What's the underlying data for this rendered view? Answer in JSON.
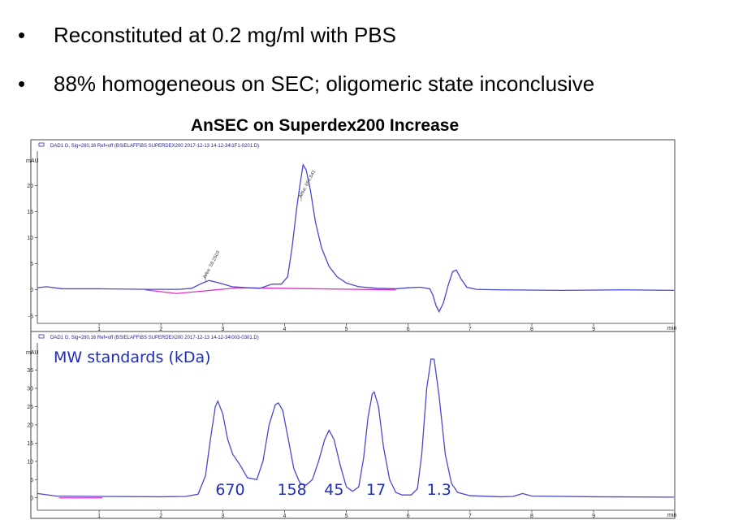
{
  "slide": {
    "bullets": [
      {
        "marker": "•",
        "text": "Reconstituted at 0.2 mg/ml with PBS"
      },
      {
        "marker": "•",
        "text": "88% homogeneous  on SEC; oligomeric state inconclusive"
      }
    ],
    "chart_title": "AnSEC on Superdex200 Increase"
  },
  "chart_data": [
    {
      "type": "line",
      "header": "DAD1 G, Sig=280,16 Ref=off (BSIELAFF\\BS SUPERDEX200 2017-12-13 14-12-34\\1F1-0201.D)",
      "ylabel": "mAU",
      "xunit": "min",
      "xlim": [
        0,
        10.3
      ],
      "ylim": [
        -5.5,
        26
      ],
      "xticks": [
        1,
        2,
        3,
        4,
        5,
        6,
        7,
        8,
        9
      ],
      "yticks": [
        -5,
        0,
        5,
        10,
        15,
        20
      ],
      "color": "#4848d0",
      "baseline_color": "#e030c0",
      "series": [
        {
          "values": [
            [
              0,
              0.4
            ],
            [
              0.15,
              0.6
            ],
            [
              0.4,
              0.2
            ],
            [
              1.0,
              0.2
            ],
            [
              1.8,
              0.1
            ],
            [
              2.3,
              0.1
            ],
            [
              2.5,
              0.3
            ],
            [
              2.65,
              1.2
            ],
            [
              2.78,
              1.8
            ],
            [
              2.95,
              1.3
            ],
            [
              3.15,
              0.6
            ],
            [
              3.4,
              0.4
            ],
            [
              3.6,
              0.3
            ],
            [
              3.8,
              1.1
            ],
            [
              3.95,
              1.1
            ],
            [
              4.05,
              2.5
            ],
            [
              4.12,
              8
            ],
            [
              4.2,
              16
            ],
            [
              4.26,
              21
            ],
            [
              4.3,
              24
            ],
            [
              4.35,
              23
            ],
            [
              4.42,
              19
            ],
            [
              4.5,
              13
            ],
            [
              4.6,
              8
            ],
            [
              4.72,
              4.5
            ],
            [
              4.85,
              2.5
            ],
            [
              5.0,
              1.3
            ],
            [
              5.2,
              0.6
            ],
            [
              5.5,
              0.3
            ],
            [
              5.8,
              0.2
            ],
            [
              6.0,
              0.4
            ],
            [
              6.2,
              0.5
            ],
            [
              6.35,
              0.2
            ],
            [
              6.4,
              -1
            ],
            [
              6.45,
              -3
            ],
            [
              6.5,
              -4.2
            ],
            [
              6.57,
              -2.5
            ],
            [
              6.65,
              1
            ],
            [
              6.72,
              3.5
            ],
            [
              6.78,
              3.8
            ],
            [
              6.86,
              2
            ],
            [
              6.95,
              0.5
            ],
            [
              7.1,
              0.1
            ],
            [
              7.5,
              0
            ],
            [
              8.5,
              -0.1
            ],
            [
              9.5,
              0
            ],
            [
              10.3,
              -0.1
            ]
          ]
        }
      ],
      "baseline": [
        [
          1.75,
          0
        ],
        [
          2.25,
          -0.7
        ],
        [
          3.25,
          0.4
        ],
        [
          5.8,
          0
        ]
      ],
      "annotations": [
        {
          "text": "Area: 58.2503",
          "x": 2.72,
          "y": 1.5
        },
        {
          "text": "Area: 656.641",
          "x": 4.27,
          "y": 17
        }
      ]
    },
    {
      "type": "line",
      "header": "DAD1 G, Sig=280,16 Ref=off (BSIELAFF\\BS SUPERDEX200 2017-12-13 14-12-34\\003-0301.D)",
      "ylabel": "mAU",
      "xunit": "min",
      "xlim": [
        0,
        10.3
      ],
      "ylim": [
        -2.5,
        42
      ],
      "xticks": [
        1,
        2,
        3,
        4,
        5,
        6,
        7,
        8,
        9
      ],
      "yticks": [
        0,
        5,
        10,
        15,
        20,
        25,
        30,
        35
      ],
      "legend": "MW standards (kDa)",
      "color": "#4848d0",
      "baseline_color": "#e030c0",
      "series": [
        {
          "values": [
            [
              0,
              1.2
            ],
            [
              0.3,
              0.5
            ],
            [
              1.0,
              0.4
            ],
            [
              2.0,
              0.3
            ],
            [
              2.4,
              0.4
            ],
            [
              2.6,
              1
            ],
            [
              2.72,
              6
            ],
            [
              2.8,
              16
            ],
            [
              2.88,
              25
            ],
            [
              2.92,
              26.5
            ],
            [
              3.0,
              23
            ],
            [
              3.08,
              16
            ],
            [
              3.16,
              12
            ],
            [
              3.28,
              9
            ],
            [
              3.4,
              5.5
            ],
            [
              3.55,
              5
            ],
            [
              3.65,
              10
            ],
            [
              3.75,
              20
            ],
            [
              3.85,
              25.5
            ],
            [
              3.9,
              26
            ],
            [
              3.97,
              24
            ],
            [
              4.05,
              17
            ],
            [
              4.15,
              8
            ],
            [
              4.25,
              4
            ],
            [
              4.35,
              3.5
            ],
            [
              4.45,
              5
            ],
            [
              4.55,
              10
            ],
            [
              4.65,
              16
            ],
            [
              4.72,
              18.5
            ],
            [
              4.8,
              16
            ],
            [
              4.9,
              9
            ],
            [
              5.0,
              3
            ],
            [
              5.1,
              1.8
            ],
            [
              5.2,
              3
            ],
            [
              5.28,
              11
            ],
            [
              5.35,
              22
            ],
            [
              5.42,
              28.5
            ],
            [
              5.45,
              29
            ],
            [
              5.52,
              25
            ],
            [
              5.6,
              14
            ],
            [
              5.7,
              5
            ],
            [
              5.8,
              1.5
            ],
            [
              5.9,
              0.8
            ],
            [
              6.05,
              0.8
            ],
            [
              6.15,
              2.5
            ],
            [
              6.22,
              12
            ],
            [
              6.3,
              30
            ],
            [
              6.37,
              38
            ],
            [
              6.42,
              38
            ],
            [
              6.5,
              28
            ],
            [
              6.6,
              12
            ],
            [
              6.7,
              4
            ],
            [
              6.8,
              1.5
            ],
            [
              7.0,
              0.6
            ],
            [
              7.5,
              0.3
            ],
            [
              7.7,
              0.4
            ],
            [
              7.85,
              1.2
            ],
            [
              8.0,
              0.5
            ],
            [
              9.0,
              0.3
            ],
            [
              10.3,
              0.2
            ]
          ]
        }
      ],
      "baseline": [
        [
          0.35,
          0
        ],
        [
          1.05,
          0
        ]
      ],
      "peak_labels": [
        {
          "text": "670",
          "x": 3.12
        },
        {
          "text": "158",
          "x": 4.12
        },
        {
          "text": "45",
          "x": 4.8
        },
        {
          "text": "17",
          "x": 5.48
        },
        {
          "text": "1.3",
          "x": 6.5
        }
      ]
    }
  ]
}
